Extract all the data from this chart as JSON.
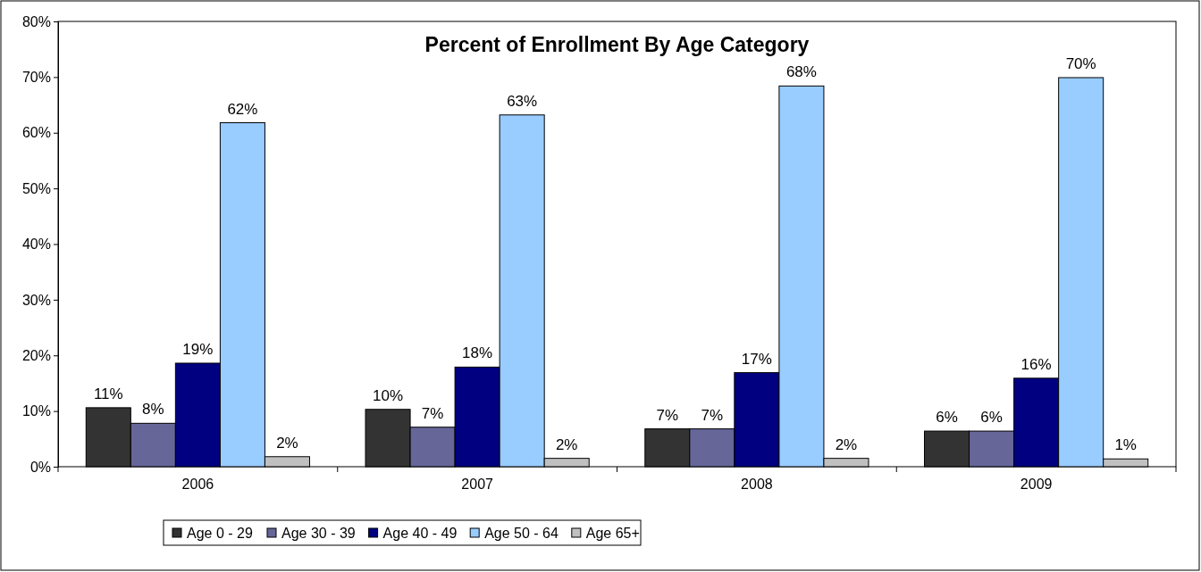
{
  "chart_data": {
    "type": "bar",
    "title": "Percent of Enrollment By Age Category",
    "categories": [
      "2006",
      "2007",
      "2008",
      "2009"
    ],
    "series": [
      {
        "name": "Age 0 - 29",
        "color": "#333333",
        "values": [
          10.6,
          10.3,
          6.8,
          6.4
        ],
        "value_labels": [
          "11%",
          "10%",
          "7%",
          "6%"
        ]
      },
      {
        "name": "Age 30 - 39",
        "color": "#666699",
        "values": [
          7.8,
          7.1,
          6.8,
          6.4
        ],
        "value_labels": [
          "8%",
          "7%",
          "7%",
          "6%"
        ]
      },
      {
        "name": "Age 40 - 49",
        "color": "#000080",
        "values": [
          18.6,
          17.9,
          16.9,
          15.9
        ],
        "value_labels": [
          "19%",
          "18%",
          "17%",
          "16%"
        ]
      },
      {
        "name": "Age 50 - 64",
        "color": "#99ccff",
        "values": [
          61.8,
          63.2,
          68.4,
          69.9
        ],
        "value_labels": [
          "62%",
          "63%",
          "68%",
          "70%"
        ]
      },
      {
        "name": "Age 65+",
        "color": "#c0c0c0",
        "values": [
          1.8,
          1.5,
          1.5,
          1.4
        ],
        "value_labels": [
          "2%",
          "2%",
          "2%",
          "1%"
        ]
      }
    ],
    "ylim": [
      0,
      80
    ],
    "yticks": [
      {
        "value": 0,
        "label": "0%"
      },
      {
        "value": 10,
        "label": "10%"
      },
      {
        "value": 20,
        "label": "20%"
      },
      {
        "value": 30,
        "label": "30%"
      },
      {
        "value": 40,
        "label": "40%"
      },
      {
        "value": 50,
        "label": "50%"
      },
      {
        "value": 60,
        "label": "60%"
      },
      {
        "value": 70,
        "label": "70%"
      },
      {
        "value": 80,
        "label": "80%"
      }
    ],
    "legend": "bottom",
    "grid": false
  }
}
